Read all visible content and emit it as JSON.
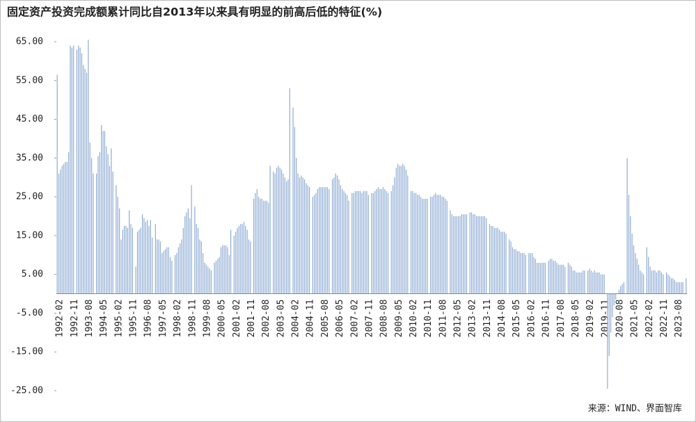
{
  "chart_data": {
    "type": "bar",
    "title": "固定资产投资完成额累计同比自2013年以来具有明显的前高后低的特征(%)",
    "source": "来源：WIND、界面智库",
    "color": "#8eabd3",
    "ylim": [
      -25,
      65
    ],
    "yticks": [
      {
        "value": 65,
        "label": "65.00"
      },
      {
        "value": 55,
        "label": "55.00"
      },
      {
        "value": 45,
        "label": "45.00"
      },
      {
        "value": 35,
        "label": "35.00"
      },
      {
        "value": 25,
        "label": "25.00"
      },
      {
        "value": 15,
        "label": "15.00"
      },
      {
        "value": 5,
        "label": "5.00"
      },
      {
        "value": -5,
        "label": "-5.00"
      },
      {
        "value": -15,
        "label": "-15.00"
      },
      {
        "value": -25,
        "label": "-25.00"
      }
    ],
    "categories": [
      "1992-02",
      null,
      null,
      null,
      null,
      null,
      null,
      null,
      null,
      "1992-11",
      null,
      null,
      null,
      null,
      null,
      null,
      null,
      null,
      "1993-08",
      null,
      null,
      null,
      null,
      null,
      null,
      null,
      null,
      "1994-05",
      null,
      null,
      null,
      null,
      null,
      null,
      null,
      null,
      "1995-02",
      null,
      null,
      null,
      null,
      null,
      null,
      null,
      null,
      "1995-11",
      null,
      null,
      null,
      null,
      null,
      null,
      null,
      null,
      "1996-08",
      null,
      null,
      null,
      null,
      null,
      null,
      null,
      null,
      "1997-05",
      null,
      null,
      null,
      null,
      null,
      null,
      null,
      null,
      "1998-02",
      null,
      null,
      null,
      null,
      null,
      null,
      null,
      null,
      "1998-11",
      null,
      null,
      null,
      null,
      null,
      null,
      null,
      null,
      "1999-08",
      null,
      null,
      null,
      null,
      null,
      null,
      null,
      null,
      "2000-05",
      null,
      null,
      null,
      null,
      null,
      null,
      null,
      null,
      "2001-02",
      null,
      null,
      null,
      null,
      null,
      null,
      null,
      null,
      "2001-11",
      null,
      null,
      null,
      null,
      null,
      null,
      null,
      null,
      "2002-08",
      null,
      null,
      null,
      null,
      null,
      null,
      null,
      null,
      "2003-05",
      null,
      null,
      null,
      null,
      null,
      null,
      null,
      null,
      "2004-02",
      null,
      null,
      null,
      null,
      null,
      null,
      null,
      null,
      "2004-11",
      null,
      null,
      null,
      null,
      null,
      null,
      null,
      null,
      "2005-08",
      null,
      null,
      null,
      null,
      null,
      null,
      null,
      null,
      "2006-05",
      null,
      null,
      null,
      null,
      null,
      null,
      null,
      null,
      "2007-02",
      null,
      null,
      null,
      null,
      null,
      null,
      null,
      null,
      "2007-11",
      null,
      null,
      null,
      null,
      null,
      null,
      null,
      null,
      "2008-08",
      null,
      null,
      null,
      null,
      null,
      null,
      null,
      null,
      "2009-05",
      null,
      null,
      null,
      null,
      null,
      null,
      null,
      null,
      "2010-02",
      null,
      null,
      null,
      null,
      null,
      null,
      null,
      null,
      "2010-11",
      null,
      null,
      null,
      null,
      null,
      null,
      null,
      null,
      "2011-08",
      null,
      null,
      null,
      null,
      null,
      null,
      null,
      null,
      "2012-05",
      null,
      null,
      null,
      null,
      null,
      null,
      null,
      null,
      "2013-02",
      null,
      null,
      null,
      null,
      null,
      null,
      null,
      null,
      "2013-11",
      null,
      null,
      null,
      null,
      null,
      null,
      null,
      null,
      "2014-08",
      null,
      null,
      null,
      null,
      null,
      null,
      null,
      null,
      "2015-05",
      null,
      null,
      null,
      null,
      null,
      null,
      null,
      null,
      "2016-02",
      null,
      null,
      null,
      null,
      null,
      null,
      null,
      null,
      "2016-11",
      null,
      null,
      null,
      null,
      null,
      null,
      null,
      null,
      "2017-08",
      null,
      null,
      null,
      null,
      null,
      null,
      null,
      null,
      "2018-05",
      null,
      null,
      null,
      null,
      null,
      null,
      null,
      null,
      "2019-02",
      null,
      null,
      null,
      null,
      null,
      null,
      null,
      null,
      "2019-11",
      null,
      null,
      null,
      null,
      null,
      null,
      null,
      null,
      "2020-08",
      null,
      null,
      null,
      null,
      null,
      null,
      null,
      null,
      "2021-05",
      null,
      null,
      null,
      null,
      null,
      null,
      null,
      null,
      "2022-02",
      null,
      null,
      null,
      null,
      null,
      null,
      null,
      null,
      "2022-11",
      null,
      null,
      null,
      null,
      null,
      null,
      null,
      null,
      "2023-08",
      null,
      null,
      null,
      null,
      null,
      null
    ],
    "values": [
      56.5,
      31,
      32,
      33,
      33.5,
      34,
      34,
      36.5,
      64,
      63.5,
      64,
      null,
      63,
      64,
      63.5,
      62,
      59,
      58,
      57,
      65.5,
      39,
      35,
      31,
      null,
      31,
      35.5,
      36.5,
      43.5,
      42,
      42,
      38,
      36,
      33,
      37.5,
      31.5,
      null,
      28,
      25,
      22,
      14,
      16.5,
      17.5,
      17.5,
      17,
      21.5,
      18,
      17,
      null,
      7,
      16,
      16.5,
      17,
      20.5,
      19.5,
      18.5,
      19,
      17.5,
      19,
      14.5,
      null,
      18,
      14,
      14,
      13.5,
      10.5,
      11,
      11.5,
      12,
      12,
      9.5,
      8.5,
      null,
      10,
      10.5,
      12,
      13,
      14,
      17,
      20,
      21,
      22,
      19.5,
      28,
      null,
      22.5,
      18,
      17,
      14,
      13.5,
      10.5,
      8,
      7.5,
      7,
      6.5,
      6,
      null,
      8,
      8.5,
      9,
      9.5,
      12,
      12.5,
      12.5,
      12.5,
      12,
      10,
      16.5,
      null,
      15,
      16,
      17,
      17.5,
      18,
      18,
      18.5,
      17.5,
      16.5,
      14,
      13.5,
      null,
      24.5,
      26,
      27,
      25,
      24.5,
      24.5,
      24,
      24,
      24,
      23.5,
      33,
      null,
      31.5,
      31,
      32.5,
      33,
      32.5,
      32,
      31,
      30,
      29,
      29.5,
      53,
      null,
      48,
      43,
      35,
      31,
      30,
      30.5,
      30,
      29.5,
      28.5,
      28,
      27.5,
      null,
      25,
      25.5,
      26,
      27,
      27.5,
      27.5,
      27.5,
      27.5,
      27.5,
      27.5,
      27,
      null,
      29.5,
      30,
      31,
      30.5,
      29.5,
      28,
      27,
      26.5,
      26,
      25.5,
      24,
      null,
      26,
      26,
      26.5,
      26.5,
      26.5,
      26.5,
      26,
      26.5,
      26.5,
      26.5,
      25.5,
      null,
      26,
      26,
      26.5,
      27,
      27.5,
      27,
      27,
      27.5,
      27,
      26.5,
      26,
      null,
      26.5,
      28,
      30,
      32.5,
      33.5,
      33,
      33,
      33.5,
      33,
      32,
      30.5,
      null,
      26.5,
      26.5,
      26,
      26,
      25.5,
      25.5,
      25,
      24.5,
      24.5,
      24.5,
      24.5,
      null,
      25,
      25,
      25.5,
      26,
      25.5,
      25.5,
      25.5,
      25,
      25,
      24.5,
      24,
      null,
      21.5,
      20.5,
      20,
      20,
      20,
      20,
      20,
      20.5,
      20.5,
      20.5,
      20.5,
      null,
      21,
      21,
      20.5,
      20.5,
      20,
      20,
      20,
      20,
      20,
      20,
      19.5,
      null,
      18,
      17.5,
      17.5,
      17,
      17,
      17,
      16.5,
      16,
      16,
      16,
      15.5,
      null,
      14,
      13.5,
      12,
      11.5,
      11.5,
      11,
      11,
      10.5,
      10.5,
      10.5,
      10,
      null,
      10.5,
      10.5,
      10.5,
      9.5,
      9,
      8,
      8,
      8,
      8,
      8,
      8,
      null,
      8.5,
      9,
      9,
      8.5,
      8.5,
      8,
      7.5,
      7.5,
      7.5,
      7.5,
      7,
      null,
      8,
      7.5,
      7,
      6,
      6,
      5.5,
      5.5,
      5.5,
      5.5,
      6,
      6,
      null,
      6,
      6.5,
      6,
      5.5,
      6,
      5.5,
      5.5,
      5.5,
      5,
      5,
      5,
      null,
      -24.5,
      -16,
      -10,
      -6,
      -3,
      -1.5,
      0,
      1,
      2,
      2.5,
      3,
      null,
      35,
      25.5,
      20,
      15.5,
      12.5,
      10.5,
      9,
      7.5,
      6,
      5.5,
      5,
      null,
      12,
      9.5,
      7,
      6,
      6,
      6,
      5.5,
      6,
      6,
      5.5,
      5,
      null,
      5.5,
      5,
      4.5,
      4,
      4,
      3.5,
      3,
      3,
      3,
      3,
      3,
      null,
      4
    ]
  }
}
